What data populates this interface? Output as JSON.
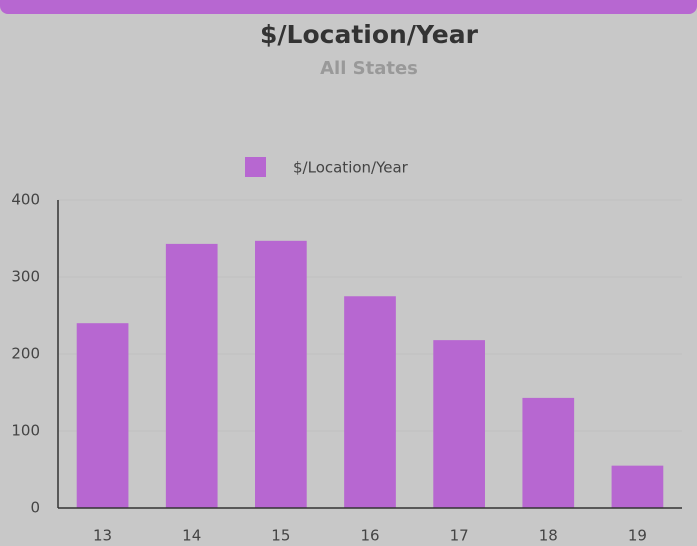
{
  "chart_data": {
    "type": "bar",
    "title": "$/Location/Year",
    "subtitle": "All States",
    "categories": [
      "13",
      "14",
      "15",
      "16",
      "17",
      "18",
      "19"
    ],
    "series": [
      {
        "name": "$/Location/Year",
        "color": "#b767d1",
        "values": [
          240,
          343,
          347,
          275,
          218,
          143,
          55
        ]
      }
    ],
    "ylim": [
      0,
      400
    ],
    "yticks": [
      0,
      100,
      200,
      300,
      400
    ],
    "grid": true,
    "legend": "top"
  }
}
